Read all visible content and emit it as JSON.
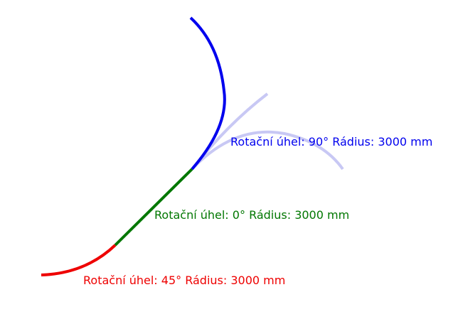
{
  "diagram": {
    "segments": [
      {
        "id": "blue",
        "color": "#0000ee",
        "label_parts": {
          "angle_text": "Rotační úhel: 90°",
          "radius_text": "Rádius: 3000 mm"
        }
      },
      {
        "id": "green",
        "color": "#007700",
        "label_parts": {
          "angle_text": "Rotační úhel: 0°",
          "radius_text": "Rádius: 3000 mm"
        }
      },
      {
        "id": "red",
        "color": "#ee0000",
        "label_parts": {
          "angle_text": "Rotační úhel: 45°",
          "radius_text": "Rádius: 3000 mm"
        }
      }
    ],
    "ghost_color": "#c8c8f4"
  }
}
